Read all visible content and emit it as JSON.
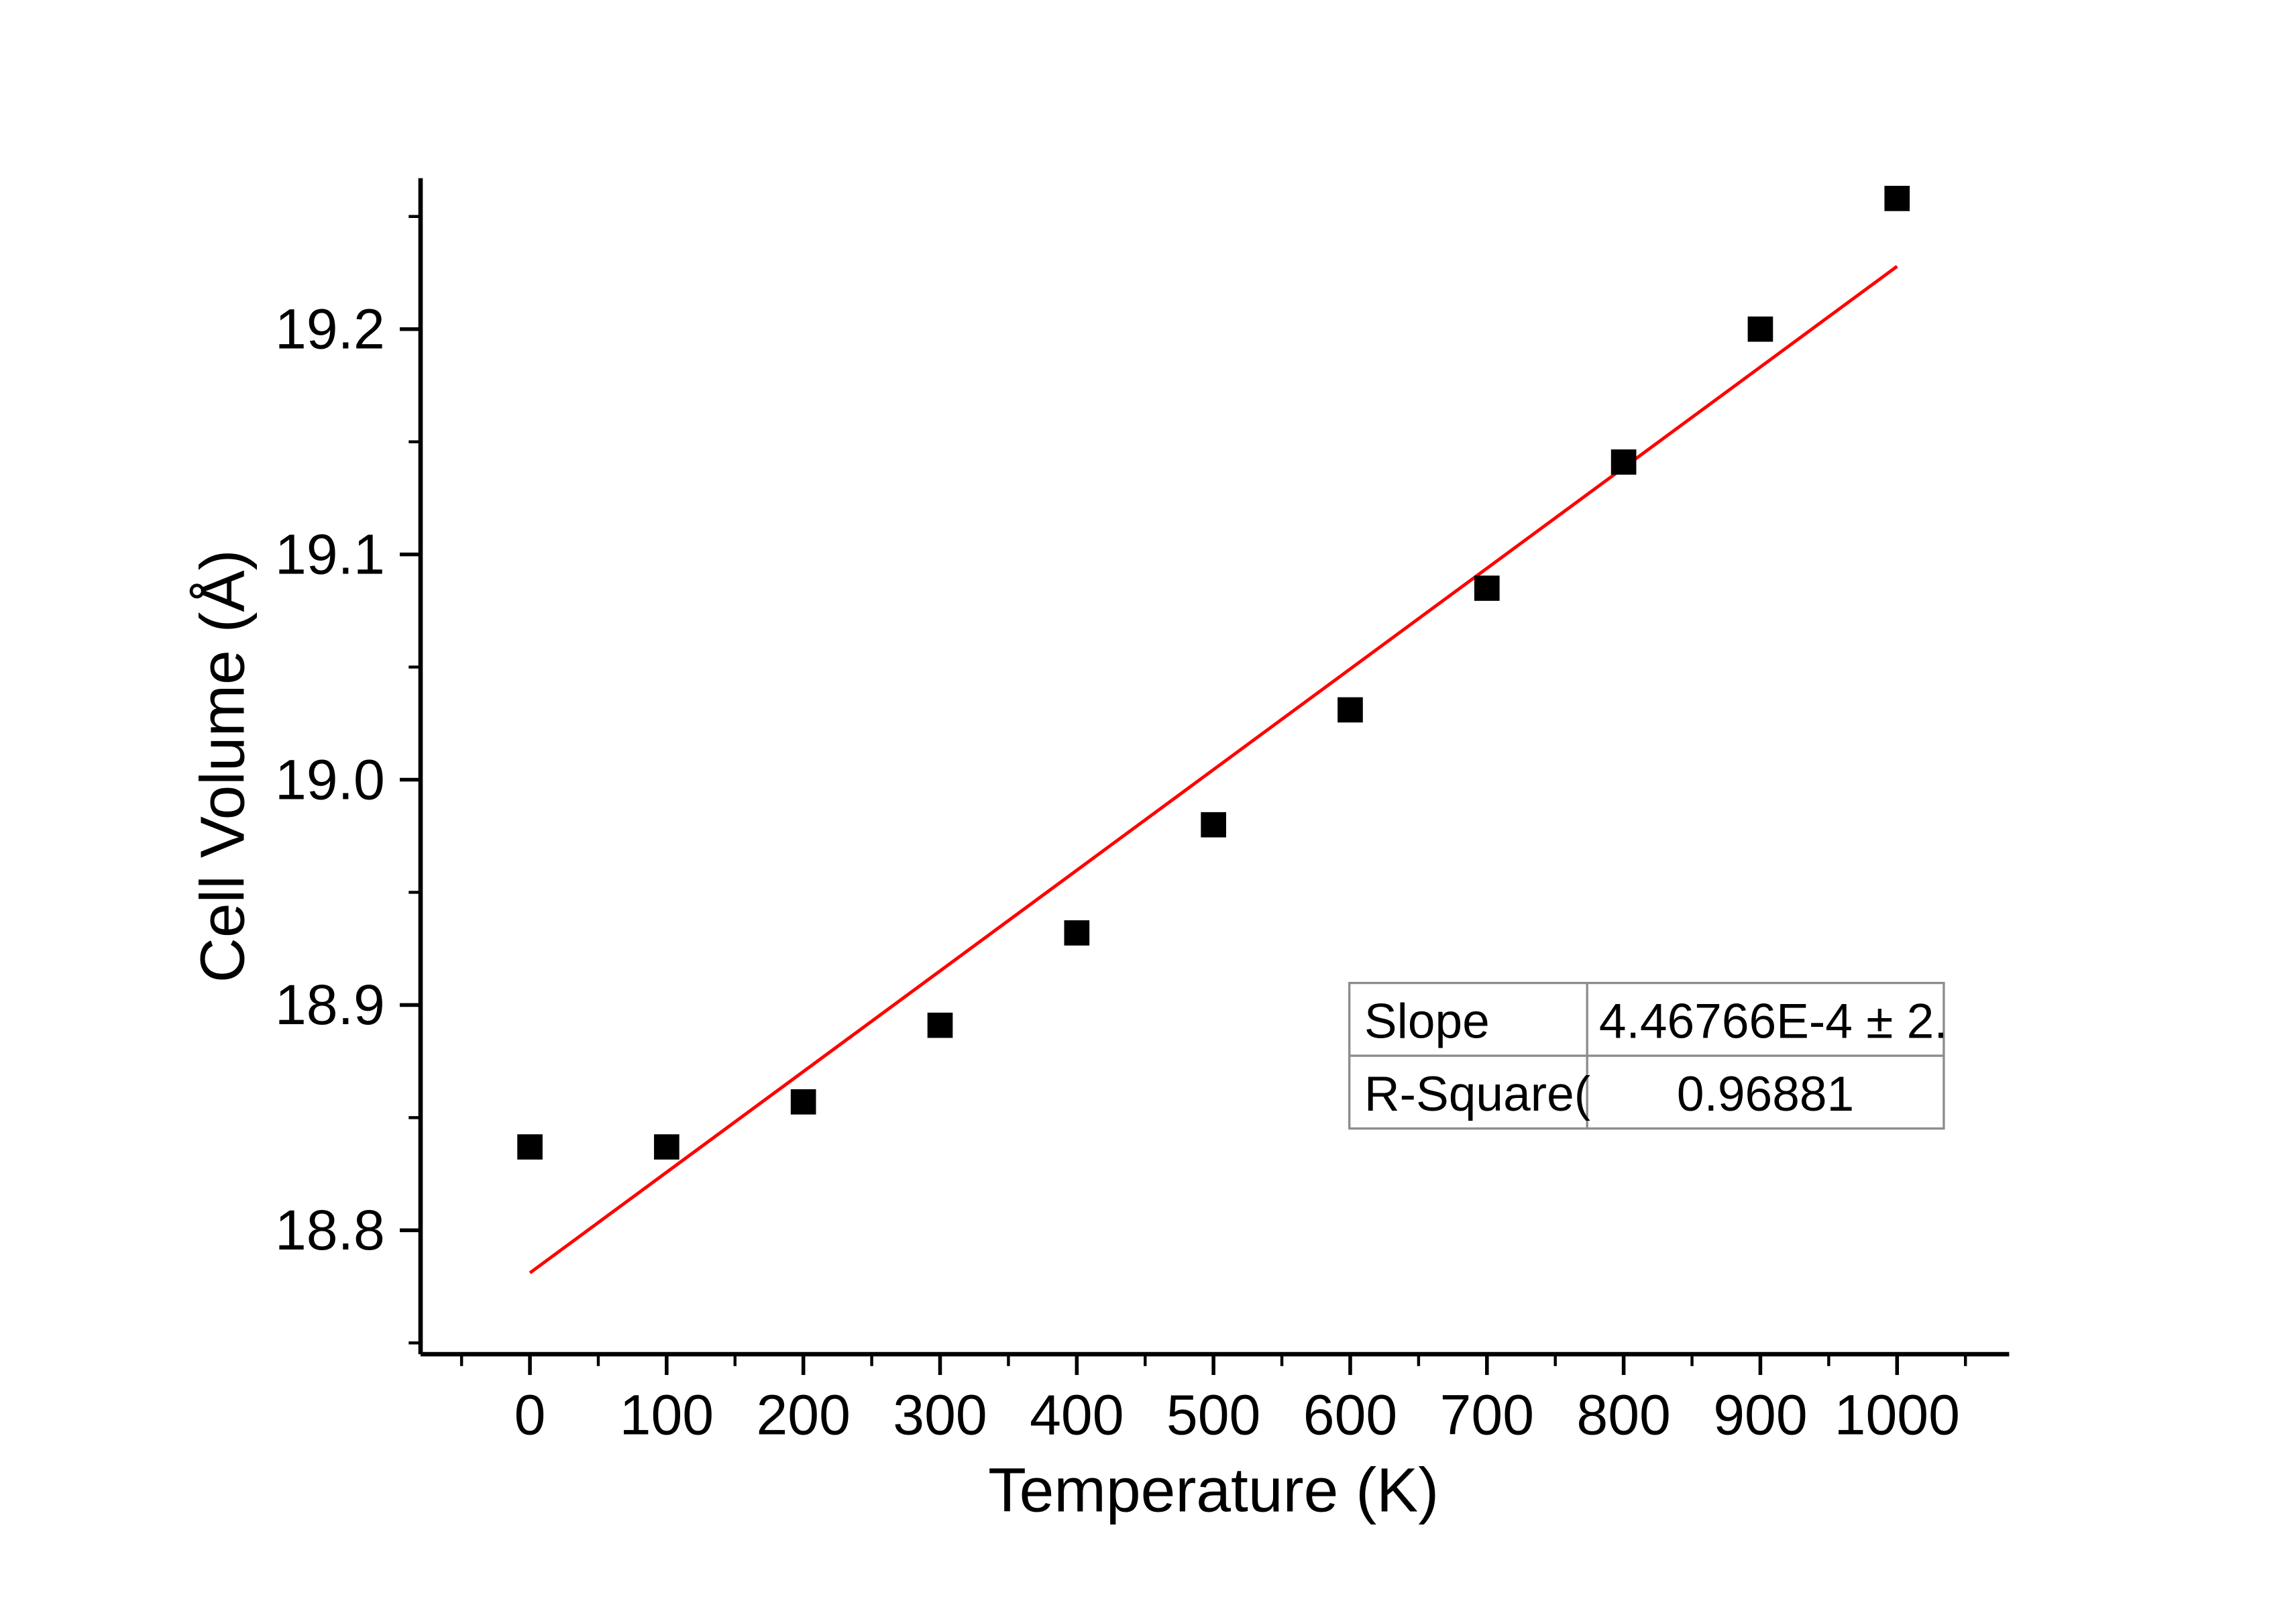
{
  "page": {
    "background": "#ffffff"
  },
  "chart_data": {
    "type": "scatter",
    "title": "",
    "xlabel": "Temperature (K)",
    "ylabel": "Cell Volume (Å)",
    "x": [
      0,
      100,
      200,
      300,
      400,
      500,
      600,
      700,
      800,
      900,
      1000
    ],
    "series": [
      {
        "name": "cell-volume",
        "marker": "square",
        "color": "#000000",
        "values": [
          18.837,
          18.837,
          18.857,
          18.891,
          18.932,
          18.98,
          19.031,
          19.085,
          19.141,
          19.2,
          19.258
        ]
      }
    ],
    "fit_line": {
      "color": "#ff0000",
      "slope": 0.000446766,
      "intercept": 18.7811,
      "x_start": 0,
      "x_end": 1000
    },
    "xlim": [
      -80,
      1082
    ],
    "ylim": [
      18.745,
      19.267
    ],
    "x_ticks": [
      0,
      100,
      200,
      300,
      400,
      500,
      600,
      700,
      800,
      900,
      1000
    ],
    "x_tick_labels": [
      "0",
      "100",
      "200",
      "300",
      "400",
      "500",
      "600",
      "700",
      "800",
      "900",
      "1000"
    ],
    "x_minor_ticks": [
      -50,
      50,
      150,
      250,
      350,
      450,
      550,
      650,
      750,
      850,
      950,
      1050
    ],
    "y_ticks": [
      18.8,
      18.9,
      19.0,
      19.1,
      19.2
    ],
    "y_tick_labels": [
      "18.8",
      "18.9",
      "19.0",
      "19.1",
      "19.2"
    ],
    "y_minor_ticks": [
      18.75,
      18.85,
      18.95,
      19.05,
      19.15,
      19.25
    ],
    "grid": "off",
    "legend_position": "none",
    "stats_table": {
      "rows": [
        {
          "label": "Slope",
          "value": "4.46766E-4 ± 2."
        },
        {
          "label": "R-Square(",
          "value": "0.96881"
        }
      ],
      "border_color": "#8c8c8c"
    }
  }
}
